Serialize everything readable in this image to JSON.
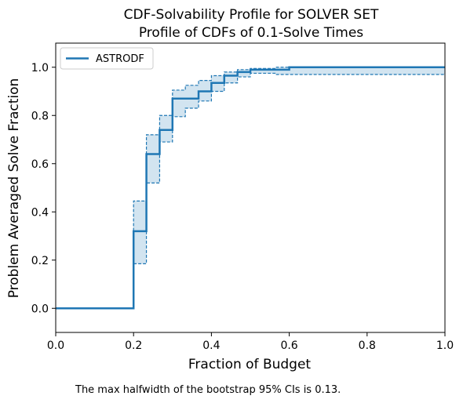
{
  "chart_data": {
    "type": "line",
    "title": "CDF-Solvability Profile for SOLVER SET",
    "subtitle": "Profile of CDFs of 0.1-Solve Times",
    "xlabel": "Fraction of Budget",
    "ylabel": "Problem Averaged Solve Fraction",
    "xlim": [
      0,
      1
    ],
    "ylim": [
      -0.1,
      1.1
    ],
    "xticks": [
      "0.0",
      "0.2",
      "0.4",
      "0.6",
      "0.8",
      "1.0"
    ],
    "yticks": [
      "0.0",
      "0.2",
      "0.4",
      "0.6",
      "0.8",
      "1.0"
    ],
    "legend_position": "top-left",
    "series": [
      {
        "name": "ASTRODF",
        "color": "#1f77b4",
        "step": true,
        "x": [
          0,
          0.2,
          0.233,
          0.267,
          0.3,
          0.3,
          0.333,
          0.367,
          0.4,
          0.433,
          0.467,
          0.5,
          0.533,
          0.567,
          0.6,
          1.0
        ],
        "y": [
          0,
          0.32,
          0.64,
          0.74,
          0.8,
          0.87,
          0.87,
          0.9,
          0.935,
          0.965,
          0.98,
          0.99,
          0.99,
          0.99,
          1.0,
          1.0
        ],
        "ci_upper": [
          0,
          0.445,
          0.72,
          0.8,
          0.845,
          0.905,
          0.925,
          0.945,
          0.965,
          0.98,
          0.99,
          0.995,
          0.995,
          1.0,
          1.0,
          1.0
        ],
        "ci_lower": [
          0,
          0.185,
          0.52,
          0.69,
          0.745,
          0.795,
          0.83,
          0.86,
          0.9,
          0.935,
          0.96,
          0.975,
          0.975,
          0.97,
          0.97,
          0.97
        ]
      }
    ]
  },
  "footnote": "The max halfwidth of the bootstrap 95% CIs is 0.13."
}
